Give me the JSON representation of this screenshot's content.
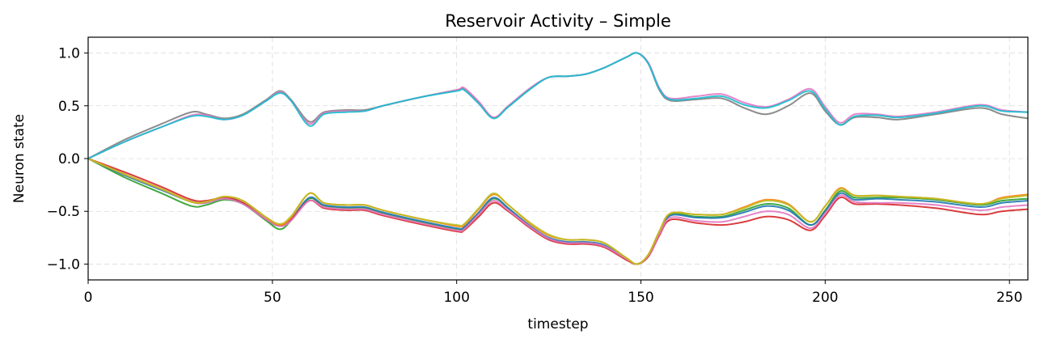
{
  "chart_data": {
    "type": "line",
    "title": "Reservoir Activity – Simple",
    "xlabel": "timestep",
    "ylabel": "Neuron state",
    "xlim": [
      0,
      255
    ],
    "ylim": [
      -1.15,
      1.15
    ],
    "xticks": [
      0,
      50,
      100,
      150,
      200,
      250
    ],
    "xtick_labels": [
      "0",
      "50",
      "100",
      "150",
      "200",
      "250"
    ],
    "yticks": [
      -1.0,
      -0.5,
      0.0,
      0.5,
      1.0
    ],
    "ytick_labels": [
      "−1.0",
      "−0.5",
      "0.0",
      "0.5",
      "1.0"
    ],
    "grid": true,
    "legend": false,
    "x": [
      0,
      10,
      20,
      28,
      32,
      37,
      42,
      48,
      52,
      55,
      60,
      64,
      70,
      75,
      80,
      90,
      100,
      102,
      106,
      110,
      114,
      120,
      125,
      130,
      135,
      140,
      146,
      149,
      152,
      155,
      158,
      165,
      172,
      178,
      184,
      190,
      196,
      200,
      204,
      208,
      214,
      220,
      230,
      242,
      248,
      255
    ],
    "series": [
      {
        "color": "#2ca02c",
        "values": [
          0.0,
          -0.18,
          -0.33,
          -0.45,
          -0.44,
          -0.39,
          -0.43,
          -0.58,
          -0.67,
          -0.59,
          -0.38,
          -0.45,
          -0.47,
          -0.47,
          -0.52,
          -0.6,
          -0.67,
          -0.66,
          -0.52,
          -0.38,
          -0.47,
          -0.65,
          -0.76,
          -0.8,
          -0.8,
          -0.83,
          -0.95,
          -1.0,
          -0.92,
          -0.71,
          -0.53,
          -0.55,
          -0.55,
          -0.49,
          -0.43,
          -0.47,
          -0.63,
          -0.49,
          -0.31,
          -0.37,
          -0.37,
          -0.37,
          -0.39,
          -0.44,
          -0.4,
          -0.38
        ]
      },
      {
        "color": "#1f77b4",
        "values": [
          0.0,
          -0.16,
          -0.3,
          -0.41,
          -0.42,
          -0.37,
          -0.42,
          -0.57,
          -0.64,
          -0.58,
          -0.37,
          -0.44,
          -0.46,
          -0.46,
          -0.51,
          -0.59,
          -0.66,
          -0.65,
          -0.51,
          -0.37,
          -0.47,
          -0.64,
          -0.75,
          -0.79,
          -0.79,
          -0.82,
          -0.95,
          -1.0,
          -0.92,
          -0.71,
          -0.54,
          -0.56,
          -0.56,
          -0.51,
          -0.45,
          -0.49,
          -0.63,
          -0.5,
          -0.33,
          -0.39,
          -0.38,
          -0.39,
          -0.41,
          -0.46,
          -0.42,
          -0.4
        ]
      },
      {
        "color": "#d62728",
        "values": [
          0.0,
          -0.13,
          -0.27,
          -0.39,
          -0.4,
          -0.37,
          -0.42,
          -0.57,
          -0.63,
          -0.58,
          -0.4,
          -0.47,
          -0.49,
          -0.49,
          -0.54,
          -0.62,
          -0.69,
          -0.68,
          -0.55,
          -0.42,
          -0.5,
          -0.66,
          -0.77,
          -0.81,
          -0.81,
          -0.84,
          -0.96,
          -1.0,
          -0.93,
          -0.73,
          -0.58,
          -0.61,
          -0.63,
          -0.6,
          -0.55,
          -0.58,
          -0.68,
          -0.54,
          -0.37,
          -0.43,
          -0.43,
          -0.44,
          -0.47,
          -0.53,
          -0.5,
          -0.48
        ]
      },
      {
        "color": "#e377c2",
        "values": [
          0.0,
          -0.15,
          -0.29,
          -0.41,
          -0.42,
          -0.38,
          -0.43,
          -0.57,
          -0.64,
          -0.59,
          -0.4,
          -0.46,
          -0.48,
          -0.48,
          -0.53,
          -0.61,
          -0.68,
          -0.67,
          -0.53,
          -0.4,
          -0.49,
          -0.65,
          -0.76,
          -0.8,
          -0.8,
          -0.83,
          -0.95,
          -1.0,
          -0.92,
          -0.72,
          -0.56,
          -0.59,
          -0.6,
          -0.55,
          -0.5,
          -0.53,
          -0.66,
          -0.52,
          -0.35,
          -0.41,
          -0.42,
          -0.42,
          -0.44,
          -0.49,
          -0.46,
          -0.44
        ]
      },
      {
        "color": "#ff7f0e",
        "values": [
          0.0,
          -0.15,
          -0.29,
          -0.41,
          -0.41,
          -0.36,
          -0.4,
          -0.55,
          -0.63,
          -0.56,
          -0.33,
          -0.42,
          -0.44,
          -0.44,
          -0.49,
          -0.57,
          -0.64,
          -0.63,
          -0.48,
          -0.34,
          -0.44,
          -0.62,
          -0.73,
          -0.77,
          -0.77,
          -0.8,
          -0.94,
          -1.0,
          -0.91,
          -0.69,
          -0.52,
          -0.53,
          -0.53,
          -0.46,
          -0.39,
          -0.43,
          -0.6,
          -0.45,
          -0.28,
          -0.35,
          -0.35,
          -0.36,
          -0.38,
          -0.43,
          -0.37,
          -0.34
        ]
      },
      {
        "color": "#bcbd22",
        "values": [
          0.0,
          -0.15,
          -0.29,
          -0.41,
          -0.41,
          -0.36,
          -0.4,
          -0.55,
          -0.62,
          -0.55,
          -0.33,
          -0.42,
          -0.44,
          -0.44,
          -0.49,
          -0.57,
          -0.63,
          -0.62,
          -0.47,
          -0.33,
          -0.44,
          -0.61,
          -0.72,
          -0.77,
          -0.77,
          -0.8,
          -0.94,
          -1.0,
          -0.91,
          -0.69,
          -0.52,
          -0.53,
          -0.53,
          -0.47,
          -0.4,
          -0.44,
          -0.6,
          -0.45,
          -0.29,
          -0.35,
          -0.35,
          -0.36,
          -0.38,
          -0.43,
          -0.38,
          -0.35
        ]
      },
      {
        "color": "#7f7f7f",
        "values": [
          0.0,
          0.18,
          0.33,
          0.44,
          0.42,
          0.38,
          0.42,
          0.55,
          0.64,
          0.56,
          0.35,
          0.44,
          0.46,
          0.46,
          0.5,
          0.58,
          0.65,
          0.66,
          0.53,
          0.39,
          0.49,
          0.66,
          0.77,
          0.78,
          0.8,
          0.86,
          0.96,
          1.0,
          0.9,
          0.65,
          0.55,
          0.56,
          0.57,
          0.48,
          0.42,
          0.5,
          0.62,
          0.45,
          0.32,
          0.39,
          0.39,
          0.37,
          0.42,
          0.48,
          0.42,
          0.38
        ]
      },
      {
        "color": "#e377c2",
        "values": [
          0.0,
          0.16,
          0.3,
          0.41,
          0.41,
          0.37,
          0.41,
          0.54,
          0.63,
          0.55,
          0.33,
          0.43,
          0.45,
          0.45,
          0.5,
          0.58,
          0.65,
          0.67,
          0.54,
          0.39,
          0.5,
          0.67,
          0.77,
          0.78,
          0.8,
          0.86,
          0.96,
          1.0,
          0.91,
          0.67,
          0.57,
          0.59,
          0.61,
          0.53,
          0.49,
          0.56,
          0.66,
          0.49,
          0.34,
          0.42,
          0.42,
          0.4,
          0.44,
          0.51,
          0.46,
          0.44
        ]
      },
      {
        "color": "#17becf",
        "values": [
          0.0,
          0.16,
          0.3,
          0.4,
          0.4,
          0.37,
          0.41,
          0.54,
          0.62,
          0.55,
          0.31,
          0.42,
          0.44,
          0.45,
          0.5,
          0.58,
          0.64,
          0.65,
          0.52,
          0.38,
          0.49,
          0.66,
          0.77,
          0.78,
          0.8,
          0.86,
          0.96,
          1.0,
          0.9,
          0.66,
          0.56,
          0.57,
          0.59,
          0.51,
          0.48,
          0.55,
          0.64,
          0.47,
          0.32,
          0.4,
          0.41,
          0.39,
          0.43,
          0.5,
          0.45,
          0.44
        ]
      }
    ]
  }
}
